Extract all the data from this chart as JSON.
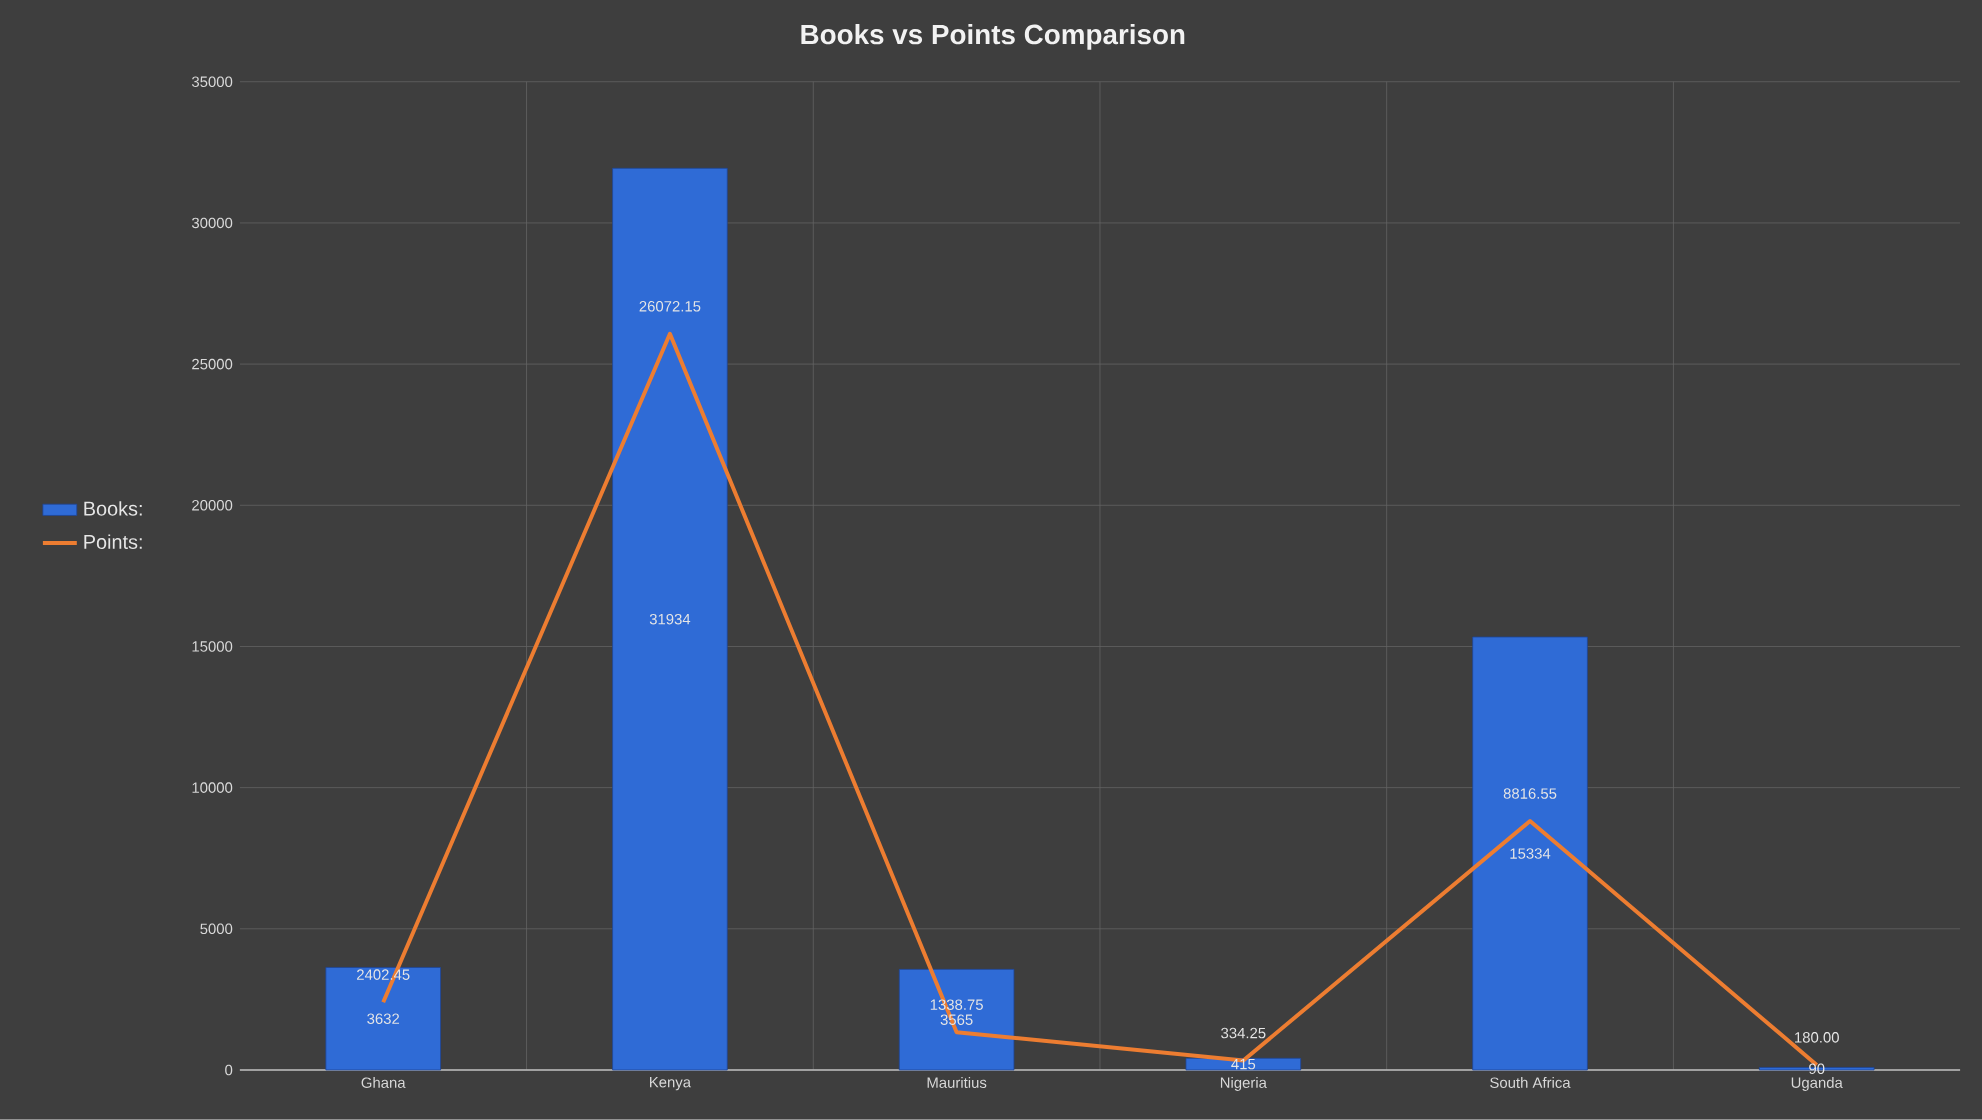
{
  "chart_data": {
    "type": "bar",
    "title": "Books vs Points Comparison",
    "categories": [
      "Ghana",
      "Kenya",
      "Mauritius",
      "Nigeria",
      "South Africa",
      "Uganda"
    ],
    "series": [
      {
        "name": "Books:",
        "color": "#2f6bd6",
        "values": [
          3632,
          31934,
          3565,
          415,
          15334,
          90
        ],
        "value_labels": [
          "3632",
          "31934",
          "3565",
          "415",
          "15334",
          "90"
        ]
      },
      {
        "name": "Points:",
        "type": "line",
        "color": "#ed7d31",
        "values": [
          2402.45,
          26072.15,
          1338.75,
          334.25,
          8816.55,
          180.0
        ],
        "value_labels": [
          "2402.45",
          "26072.15",
          "1338.75",
          "334.25",
          "8816.55",
          "180.00"
        ]
      }
    ],
    "ylim": [
      0,
      35000
    ],
    "yticks": [
      0,
      5000,
      10000,
      15000,
      20000,
      25000,
      30000,
      35000
    ],
    "grid": true,
    "legend": "left",
    "marker": "none",
    "line_style": "solid"
  }
}
